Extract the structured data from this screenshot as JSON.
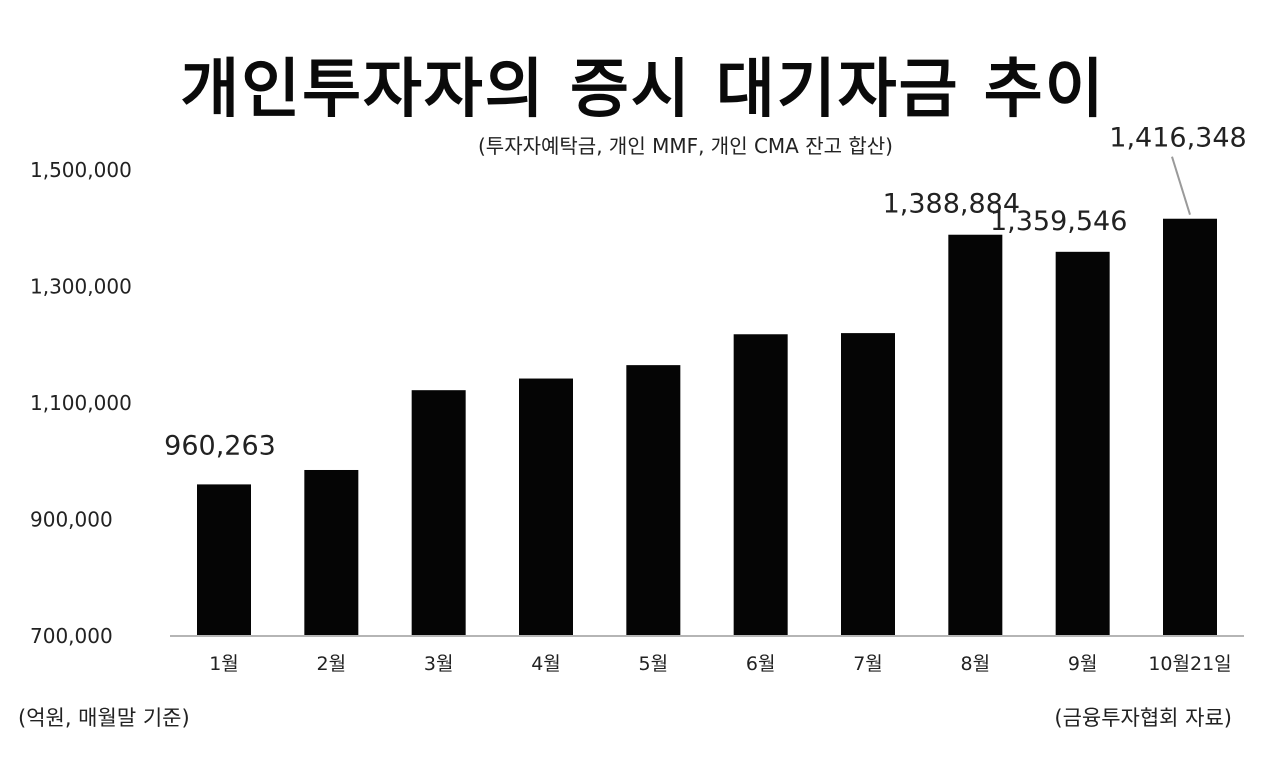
{
  "title": "개인투자자의 증시 대기자금 추이",
  "subtitle": "(투자자예탁금, 개인 MMF, 개인 CMA 잔고 합산)",
  "unit_note": "(억원, 매월말 기준)",
  "source_note": "(금융투자협회 자료)",
  "chart_data": {
    "type": "bar",
    "title": "개인투자자의 증시 대기자금 추이",
    "subtitle": "(투자자예탁금, 개인 MMF, 개인 CMA 잔고 합산)",
    "xlabel": "",
    "ylabel": "",
    "categories": [
      "1월",
      "2월",
      "3월",
      "4월",
      "5월",
      "6월",
      "7월",
      "8월",
      "9월",
      "10월21일"
    ],
    "values": [
      960263,
      985000,
      1122000,
      1142000,
      1165000,
      1218000,
      1220000,
      1388884,
      1359546,
      1416348
    ],
    "data_labels": [
      {
        "index": 0,
        "text": "960,263"
      },
      {
        "index": 7,
        "text": "1,388,884"
      },
      {
        "index": 8,
        "text": "1,359,546"
      },
      {
        "index": 9,
        "text": "1,416,348"
      }
    ],
    "ylim": [
      700000,
      1500000
    ],
    "yticks": [
      700000,
      900000,
      1100000,
      1300000,
      1500000
    ],
    "ytick_labels": [
      "700,000",
      "900,000",
      "1,100,000",
      "1,300,000",
      "1,500,000"
    ],
    "grid": false,
    "bar_color": "#050505"
  }
}
